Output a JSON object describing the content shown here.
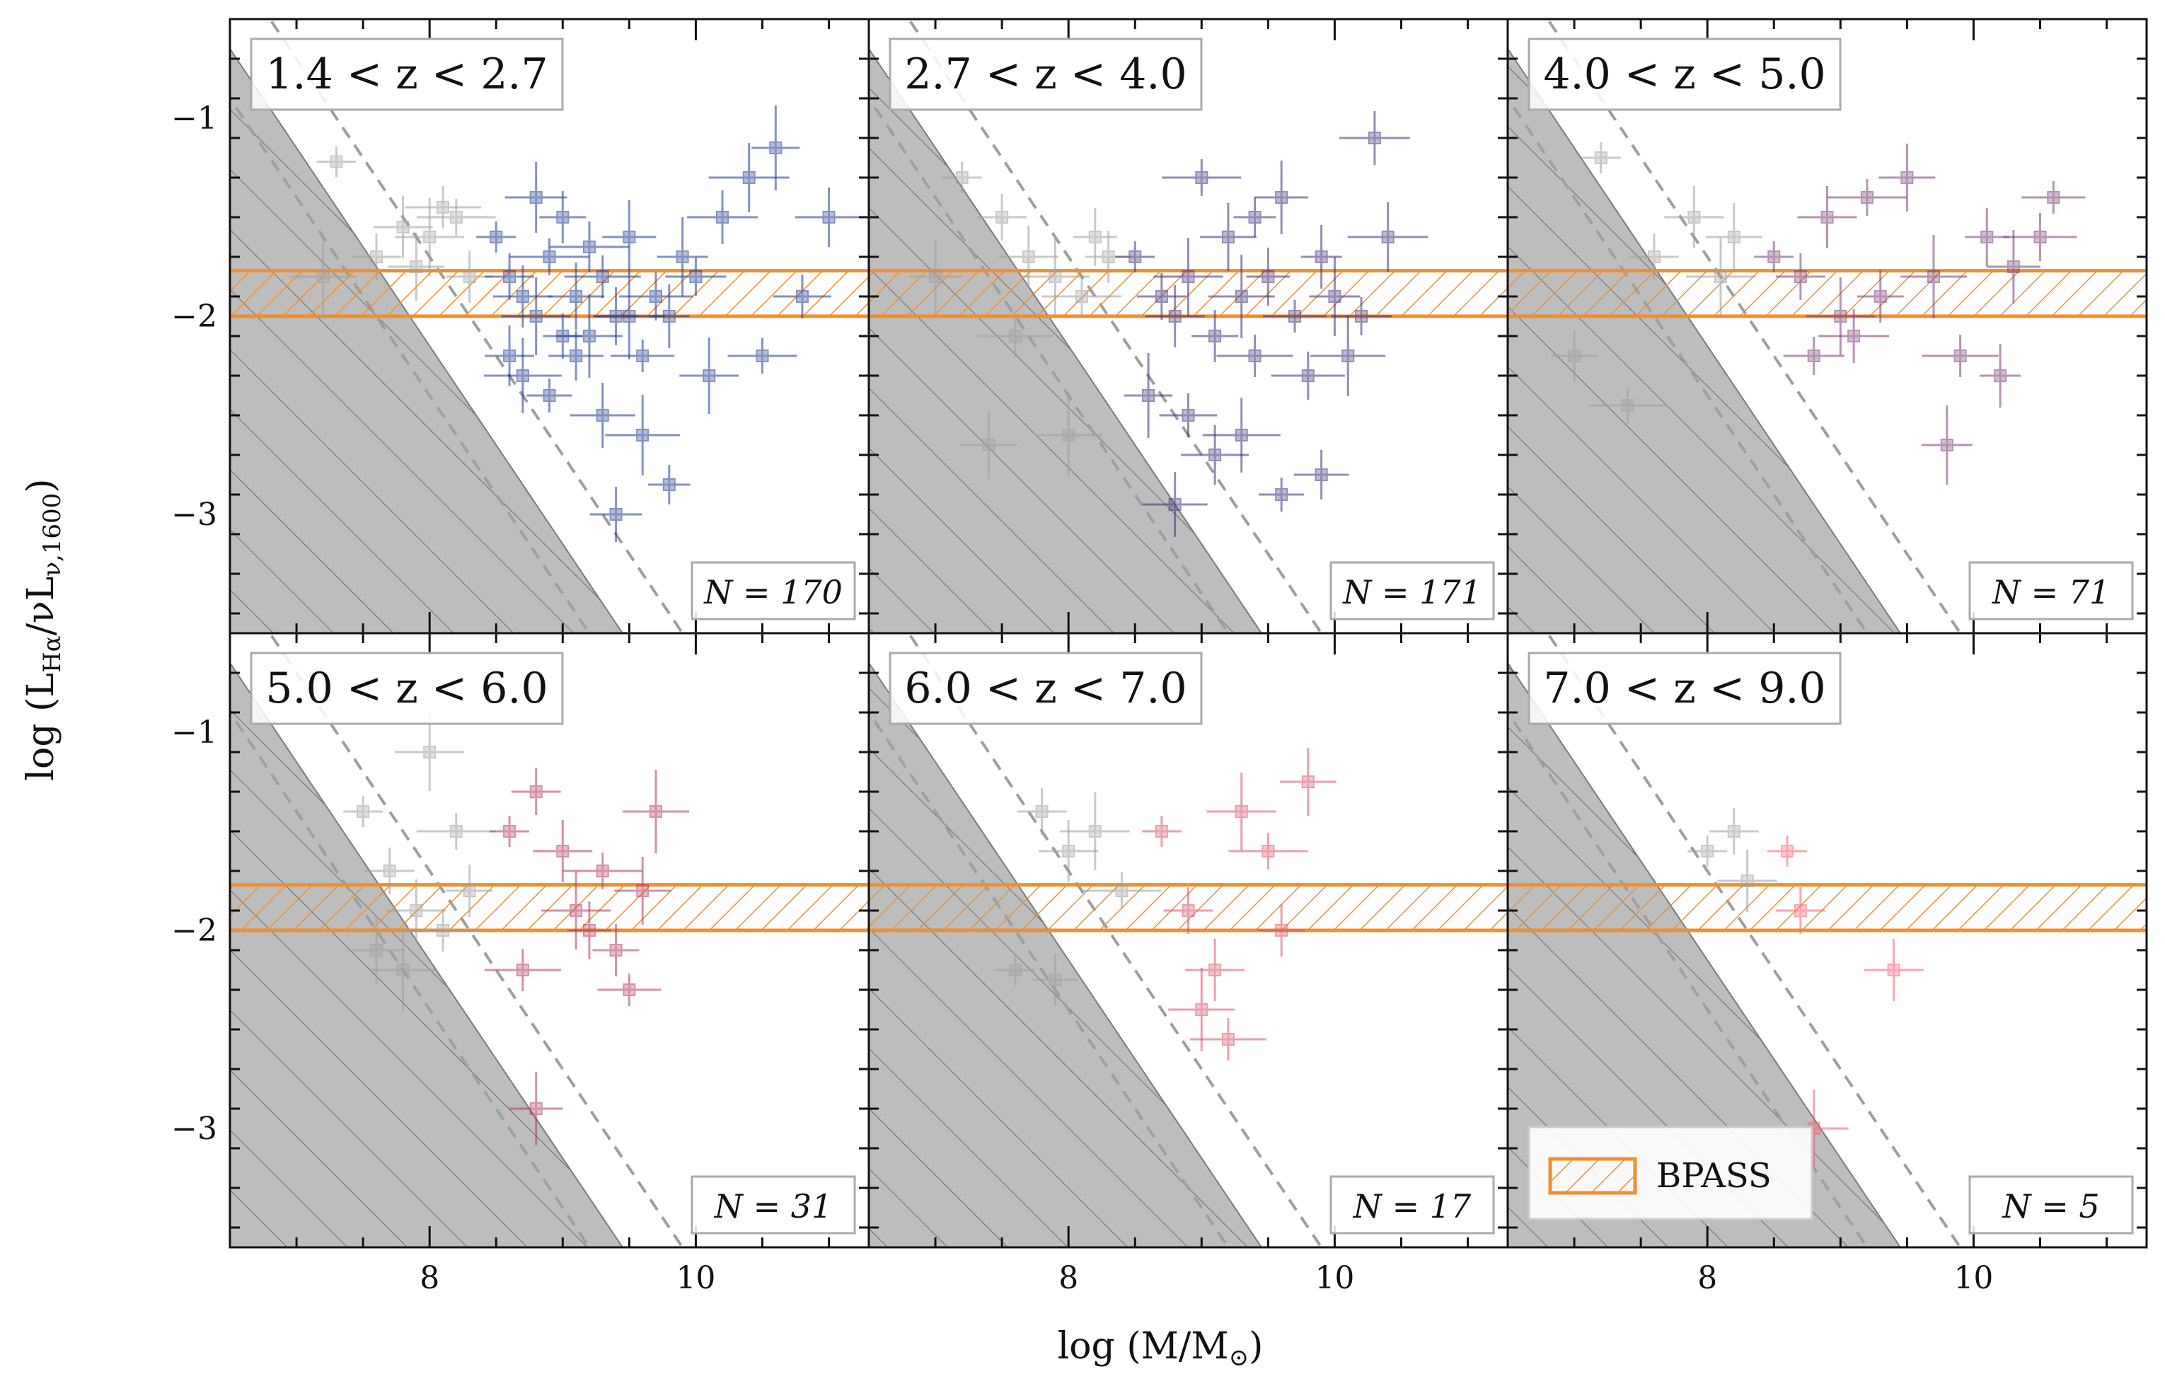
{
  "chart_data": {
    "type": "scatter",
    "xlabel": "log (M/M⊙)",
    "ylabel": "log (Lₕα/νLν,1600)",
    "ylabel_main": "log (L",
    "ylabel_sub1": "Hα",
    "ylabel_mid": "/νL",
    "ylabel_sub2": "ν,1600",
    "ylabel_end": ")",
    "xlabel_main": "log (M/M",
    "xlabel_sub": "⊙",
    "xlabel_end": ")",
    "xlim": [
      6.5,
      11.3
    ],
    "ylim": [
      -3.6,
      -0.5
    ],
    "xticks_labeled": [
      "8",
      "10"
    ],
    "yticks_labeled": [
      "−1",
      "−2",
      "−3"
    ],
    "bpass_band": [
      -2.0,
      -1.77
    ],
    "bpass_color": "#f28e2b",
    "grey_color": "#9e9e9e",
    "legend": {
      "label": "BPASS"
    },
    "panels": [
      {
        "zlabel": "1.4 < z < 2.7",
        "nlabel": "N = 170",
        "color": "#1f3a93",
        "cut_x_at_bottom": 9.45,
        "dash_offsets": [
          -0.25,
          0.45
        ],
        "points_color": [
          [
            8.5,
            -1.6
          ],
          [
            8.6,
            -1.8
          ],
          [
            8.7,
            -1.9
          ],
          [
            8.8,
            -2.0
          ],
          [
            8.9,
            -1.7
          ],
          [
            9.0,
            -1.5
          ],
          [
            9.1,
            -1.9
          ],
          [
            9.2,
            -2.1
          ],
          [
            9.3,
            -1.8
          ],
          [
            9.4,
            -2.0
          ],
          [
            9.5,
            -1.6
          ],
          [
            9.6,
            -2.2
          ],
          [
            9.7,
            -1.9
          ],
          [
            9.8,
            -2.0
          ],
          [
            9.9,
            -1.7
          ],
          [
            10.0,
            -1.8
          ],
          [
            10.2,
            -1.5
          ],
          [
            10.4,
            -1.3
          ],
          [
            10.6,
            -1.15
          ],
          [
            10.8,
            -1.9
          ],
          [
            11.0,
            -1.5
          ],
          [
            8.7,
            -2.3
          ],
          [
            8.9,
            -2.4
          ],
          [
            9.1,
            -2.2
          ],
          [
            9.3,
            -2.5
          ],
          [
            9.6,
            -2.6
          ],
          [
            9.8,
            -2.85
          ],
          [
            9.4,
            -3.0
          ],
          [
            8.8,
            -1.4
          ],
          [
            9.5,
            -2.0
          ],
          [
            9.0,
            -2.1
          ],
          [
            8.6,
            -2.2
          ],
          [
            10.1,
            -2.3
          ],
          [
            10.5,
            -2.2
          ],
          [
            9.2,
            -1.65
          ]
        ],
        "points_grey": [
          [
            7.3,
            -1.22
          ],
          [
            7.6,
            -1.7
          ],
          [
            7.8,
            -1.55
          ],
          [
            8.0,
            -1.6
          ],
          [
            8.2,
            -1.5
          ],
          [
            8.3,
            -1.8
          ],
          [
            7.9,
            -1.75
          ],
          [
            7.2,
            -1.8
          ],
          [
            8.1,
            -1.45
          ]
        ]
      },
      {
        "zlabel": "2.7 < z < 4.0",
        "nlabel": "N = 171",
        "color": "#3d2f7a",
        "cut_x_at_bottom": 9.45,
        "dash_offsets": [
          -0.25,
          0.45
        ],
        "points_color": [
          [
            8.5,
            -1.7
          ],
          [
            8.7,
            -1.9
          ],
          [
            8.8,
            -2.0
          ],
          [
            8.9,
            -1.8
          ],
          [
            9.0,
            -1.3
          ],
          [
            9.1,
            -2.1
          ],
          [
            9.2,
            -1.6
          ],
          [
            9.3,
            -1.9
          ],
          [
            9.4,
            -2.2
          ],
          [
            9.5,
            -1.8
          ],
          [
            9.6,
            -1.4
          ],
          [
            9.7,
            -2.0
          ],
          [
            9.8,
            -2.3
          ],
          [
            9.9,
            -1.7
          ],
          [
            10.0,
            -1.9
          ],
          [
            10.2,
            -2.0
          ],
          [
            10.3,
            -1.1
          ],
          [
            10.4,
            -1.6
          ],
          [
            8.6,
            -2.4
          ],
          [
            8.9,
            -2.5
          ],
          [
            9.1,
            -2.7
          ],
          [
            9.3,
            -2.6
          ],
          [
            9.6,
            -2.9
          ],
          [
            9.9,
            -2.8
          ],
          [
            8.8,
            -2.95
          ],
          [
            10.1,
            -2.2
          ],
          [
            9.4,
            -1.5
          ]
        ],
        "points_grey": [
          [
            7.2,
            -1.3
          ],
          [
            7.5,
            -1.5
          ],
          [
            7.7,
            -1.7
          ],
          [
            7.9,
            -1.8
          ],
          [
            8.1,
            -1.9
          ],
          [
            8.3,
            -1.7
          ],
          [
            7.4,
            -2.65
          ],
          [
            8.0,
            -2.6
          ],
          [
            7.6,
            -2.1
          ],
          [
            8.2,
            -1.6
          ],
          [
            7.0,
            -1.8
          ]
        ]
      },
      {
        "zlabel": "4.0 < z < 5.0",
        "nlabel": "N = 71",
        "color": "#7a3b75",
        "cut_x_at_bottom": 9.45,
        "dash_offsets": [
          -0.25,
          0.45
        ],
        "points_color": [
          [
            8.5,
            -1.7
          ],
          [
            8.7,
            -1.8
          ],
          [
            8.9,
            -1.5
          ],
          [
            9.0,
            -2.0
          ],
          [
            9.2,
            -1.4
          ],
          [
            9.3,
            -1.9
          ],
          [
            9.5,
            -1.3
          ],
          [
            9.7,
            -1.8
          ],
          [
            9.9,
            -2.2
          ],
          [
            10.1,
            -1.6
          ],
          [
            10.3,
            -1.75
          ],
          [
            10.6,
            -1.4
          ],
          [
            10.5,
            -1.6
          ],
          [
            10.2,
            -2.3
          ],
          [
            9.8,
            -2.65
          ],
          [
            8.8,
            -2.2
          ],
          [
            9.1,
            -2.1
          ]
        ],
        "points_grey": [
          [
            7.2,
            -1.2
          ],
          [
            7.6,
            -1.7
          ],
          [
            7.9,
            -1.5
          ],
          [
            8.1,
            -1.8
          ],
          [
            7.4,
            -2.45
          ],
          [
            7.0,
            -2.2
          ],
          [
            8.2,
            -1.6
          ]
        ]
      },
      {
        "zlabel": "5.0 < z < 6.0",
        "nlabel": "N = 31",
        "color": "#b5375f",
        "cut_x_at_bottom": 9.45,
        "dash_offsets": [
          -0.25,
          0.45
        ],
        "points_color": [
          [
            8.6,
            -1.5
          ],
          [
            8.8,
            -1.3
          ],
          [
            9.0,
            -1.6
          ],
          [
            9.1,
            -1.9
          ],
          [
            9.3,
            -1.7
          ],
          [
            9.4,
            -2.1
          ],
          [
            9.6,
            -1.8
          ],
          [
            9.7,
            -1.4
          ],
          [
            8.7,
            -2.2
          ],
          [
            9.2,
            -2.0
          ],
          [
            8.8,
            -2.9
          ],
          [
            9.5,
            -2.3
          ]
        ],
        "points_grey": [
          [
            7.5,
            -1.4
          ],
          [
            7.7,
            -1.7
          ],
          [
            7.9,
            -1.9
          ],
          [
            8.0,
            -1.1
          ],
          [
            8.2,
            -1.5
          ],
          [
            8.3,
            -1.8
          ],
          [
            7.6,
            -2.1
          ],
          [
            7.8,
            -2.2
          ],
          [
            8.1,
            -2.0
          ]
        ]
      },
      {
        "zlabel": "6.0 < z < 7.0",
        "nlabel": "N = 17",
        "color": "#d9526b",
        "cut_x_at_bottom": 9.45,
        "dash_offsets": [
          -0.25,
          0.45
        ],
        "points_color": [
          [
            8.7,
            -1.5
          ],
          [
            8.9,
            -1.9
          ],
          [
            9.1,
            -2.2
          ],
          [
            9.3,
            -1.4
          ],
          [
            9.5,
            -1.6
          ],
          [
            9.6,
            -2.0
          ],
          [
            9.8,
            -1.25
          ],
          [
            9.0,
            -2.4
          ],
          [
            9.2,
            -2.55
          ]
        ],
        "points_grey": [
          [
            7.6,
            -2.2
          ],
          [
            7.8,
            -1.4
          ],
          [
            8.0,
            -1.6
          ],
          [
            8.2,
            -1.5
          ],
          [
            8.4,
            -1.8
          ],
          [
            7.9,
            -2.25
          ]
        ]
      },
      {
        "zlabel": "7.0 < z < 9.0",
        "nlabel": "N = 5",
        "color": "#ff5a6e",
        "cut_x_at_bottom": 9.45,
        "dash_offsets": [
          -0.25,
          0.45
        ],
        "points_color": [
          [
            8.6,
            -1.6
          ],
          [
            8.7,
            -1.9
          ],
          [
            9.4,
            -2.2
          ],
          [
            8.8,
            -3.0
          ]
        ],
        "points_grey": [
          [
            8.0,
            -1.6
          ],
          [
            8.2,
            -1.5
          ],
          [
            8.3,
            -1.75
          ]
        ]
      }
    ]
  }
}
